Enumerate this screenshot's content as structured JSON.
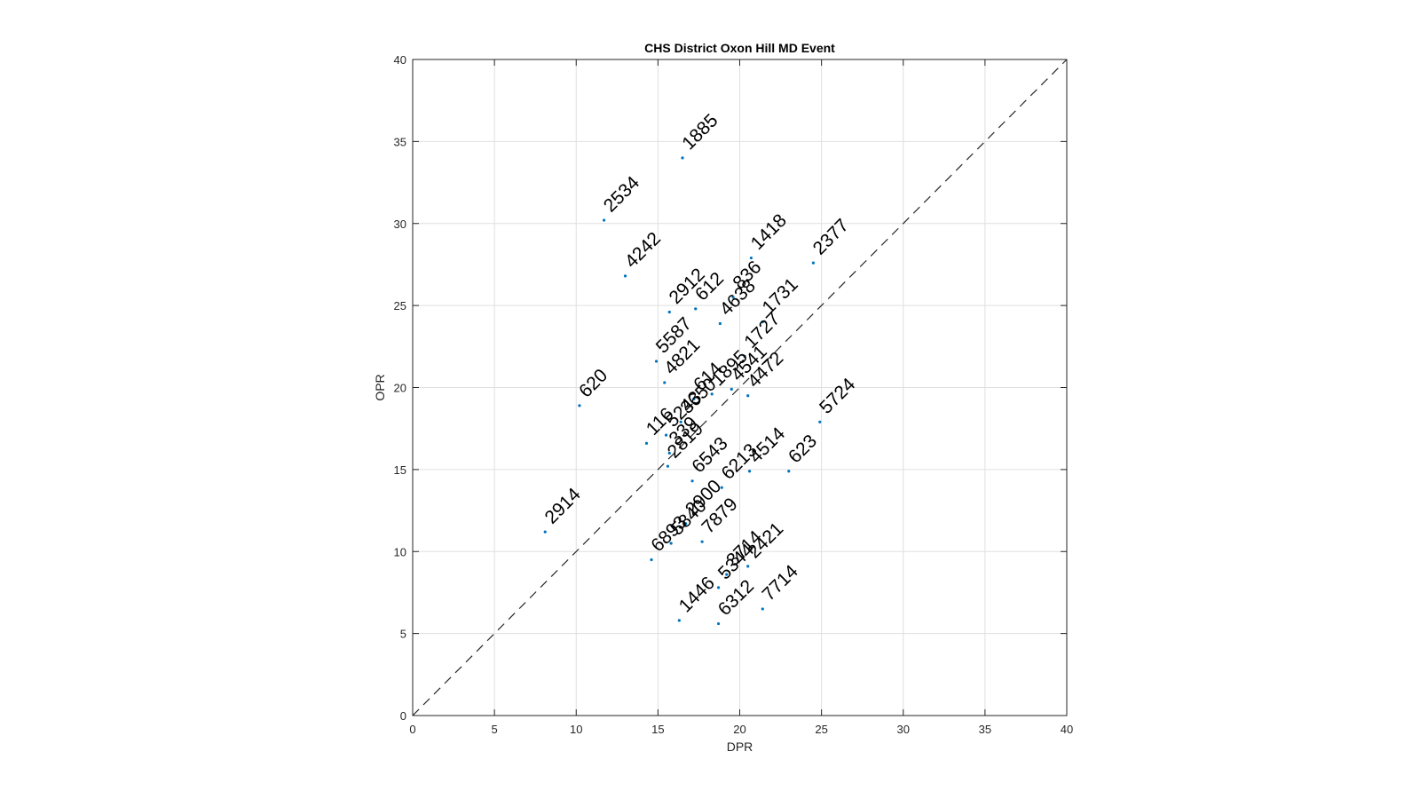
{
  "chart_data": {
    "type": "scatter",
    "title": "CHS District Oxon Hill MD Event",
    "xlabel": "DPR",
    "ylabel": "OPR",
    "xlim": [
      0,
      40
    ],
    "ylim": [
      0,
      40
    ],
    "xticks": [
      "0",
      "5",
      "10",
      "15",
      "20",
      "25",
      "30",
      "35",
      "40"
    ],
    "yticks": [
      "0",
      "5",
      "10",
      "15",
      "20",
      "25",
      "30",
      "35",
      "40"
    ],
    "grid": true,
    "reference_line": {
      "style": "dashed",
      "from": [
        0,
        0
      ],
      "to": [
        40,
        40
      ]
    },
    "marker_color": "#0072BD",
    "points": [
      {
        "label": "1885",
        "x": 16.5,
        "y": 34.0
      },
      {
        "label": "2534",
        "x": 11.7,
        "y": 30.2
      },
      {
        "label": "4242",
        "x": 13.0,
        "y": 26.8
      },
      {
        "label": "1418",
        "x": 20.7,
        "y": 27.9
      },
      {
        "label": "2377",
        "x": 24.5,
        "y": 27.6
      },
      {
        "label": "2912",
        "x": 15.7,
        "y": 24.6
      },
      {
        "label": "612",
        "x": 17.3,
        "y": 24.8
      },
      {
        "label": "836",
        "x": 19.6,
        "y": 25.5
      },
      {
        "label": "4638",
        "x": 18.8,
        "y": 23.9
      },
      {
        "label": "1731",
        "x": 21.4,
        "y": 24.0
      },
      {
        "label": "5587",
        "x": 14.9,
        "y": 21.6
      },
      {
        "label": "1727",
        "x": 20.3,
        "y": 21.9
      },
      {
        "label": "4821",
        "x": 15.4,
        "y": 20.3
      },
      {
        "label": "620",
        "x": 10.2,
        "y": 18.9
      },
      {
        "label": "614",
        "x": 17.2,
        "y": 19.3
      },
      {
        "label": "1895",
        "x": 18.3,
        "y": 19.6
      },
      {
        "label": "4541",
        "x": 19.5,
        "y": 19.9
      },
      {
        "label": "4472",
        "x": 20.5,
        "y": 19.5
      },
      {
        "label": "5724",
        "x": 24.9,
        "y": 17.9
      },
      {
        "label": "5243",
        "x": 15.5,
        "y": 17.1
      },
      {
        "label": "3650",
        "x": 16.4,
        "y": 17.9
      },
      {
        "label": "116",
        "x": 14.3,
        "y": 16.6
      },
      {
        "label": "339",
        "x": 15.7,
        "y": 16.0
      },
      {
        "label": "2819",
        "x": 15.6,
        "y": 15.2
      },
      {
        "label": "6543",
        "x": 17.1,
        "y": 14.3
      },
      {
        "label": "6213",
        "x": 18.9,
        "y": 13.9
      },
      {
        "label": "4514",
        "x": 20.6,
        "y": 14.9
      },
      {
        "label": "623",
        "x": 23.0,
        "y": 14.9
      },
      {
        "label": "2914",
        "x": 8.1,
        "y": 11.2
      },
      {
        "label": "6893",
        "x": 14.6,
        "y": 9.5
      },
      {
        "label": "5840",
        "x": 15.8,
        "y": 10.5
      },
      {
        "label": "2900",
        "x": 16.7,
        "y": 11.7
      },
      {
        "label": "7879",
        "x": 17.7,
        "y": 10.6
      },
      {
        "label": "3714",
        "x": 19.2,
        "y": 8.6
      },
      {
        "label": "2421",
        "x": 20.5,
        "y": 9.1
      },
      {
        "label": "5344",
        "x": 18.7,
        "y": 7.8
      },
      {
        "label": "1446",
        "x": 16.3,
        "y": 5.8
      },
      {
        "label": "6312",
        "x": 18.7,
        "y": 5.6
      },
      {
        "label": "7714",
        "x": 21.4,
        "y": 6.5
      }
    ]
  }
}
